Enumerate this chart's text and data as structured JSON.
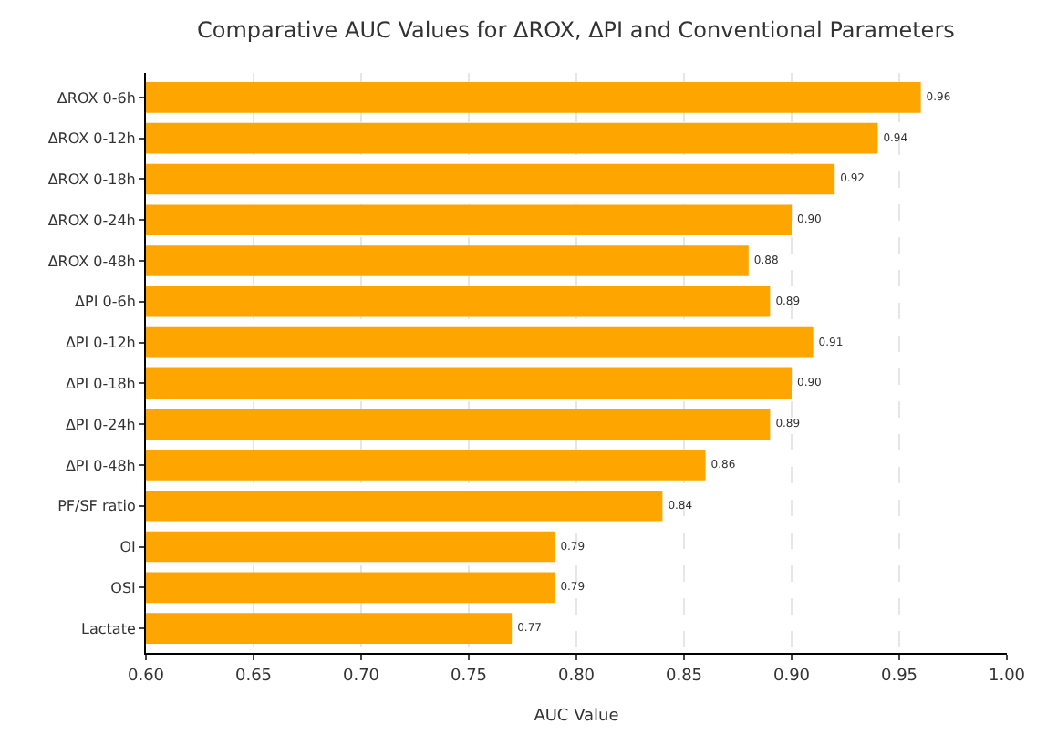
{
  "chart_data": {
    "type": "bar",
    "orientation": "horizontal",
    "title": "Comparative AUC Values for ΔROX, ΔPI and Conventional Parameters",
    "xlabel": "AUC Value",
    "categories": [
      "ΔROX 0-6h",
      "ΔROX 0-12h",
      "ΔROX 0-18h",
      "ΔROX 0-24h",
      "ΔROX 0-48h",
      "ΔPI 0-6h",
      "ΔPI 0-12h",
      "ΔPI 0-18h",
      "ΔPI 0-24h",
      "ΔPI 0-48h",
      "PF/SF ratio",
      "OI",
      "OSI",
      "Lactate"
    ],
    "values": [
      0.96,
      0.94,
      0.92,
      0.9,
      0.88,
      0.89,
      0.91,
      0.9,
      0.89,
      0.86,
      0.84,
      0.79,
      0.79,
      0.77
    ],
    "color": "#ffa500",
    "xlim": [
      0.6,
      1.0
    ],
    "xticks": [
      {
        "value": 0.6,
        "label": "0.60"
      },
      {
        "value": 0.65,
        "label": "0.65"
      },
      {
        "value": 0.7,
        "label": "0.70"
      },
      {
        "value": 0.75,
        "label": "0.75"
      },
      {
        "value": 0.8,
        "label": "0.80"
      },
      {
        "value": 0.85,
        "label": "0.85"
      },
      {
        "value": 0.9,
        "label": "0.90"
      },
      {
        "value": 0.95,
        "label": "0.95"
      },
      {
        "value": 1.0,
        "label": "1.00"
      }
    ],
    "value_labels": [
      "0.96",
      "0.94",
      "0.92",
      "0.90",
      "0.88",
      "0.89",
      "0.91",
      "0.90",
      "0.89",
      "0.86",
      "0.84",
      "0.79",
      "0.79",
      "0.77"
    ],
    "grid": "x"
  }
}
